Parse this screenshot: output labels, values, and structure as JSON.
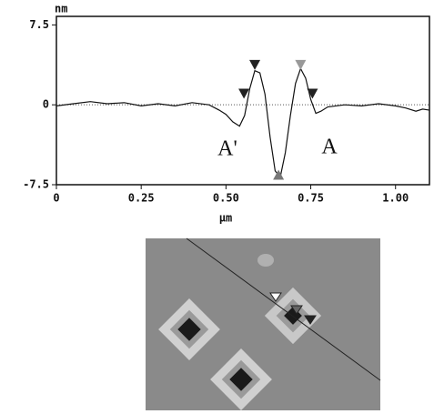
{
  "chart_data": {
    "type": "line",
    "y_unit": "nm",
    "x_unit": "μm",
    "x": [
      0,
      0.05,
      0.1,
      0.15,
      0.2,
      0.25,
      0.3,
      0.35,
      0.4,
      0.45,
      0.48,
      0.5,
      0.52,
      0.54,
      0.555,
      0.57,
      0.585,
      0.6,
      0.615,
      0.63,
      0.645,
      0.66,
      0.675,
      0.69,
      0.705,
      0.72,
      0.735,
      0.75,
      0.765,
      0.78,
      0.8,
      0.85,
      0.9,
      0.95,
      1.0,
      1.03,
      1.06,
      1.08,
      1.1
    ],
    "values": [
      -0.1,
      0.1,
      0.3,
      0.1,
      0.2,
      -0.1,
      0.1,
      -0.1,
      0.2,
      0.0,
      -0.5,
      -0.9,
      -1.6,
      -2.0,
      -1.0,
      1.5,
      3.2,
      3.0,
      1.0,
      -3.0,
      -6.2,
      -6.8,
      -4.5,
      -1.0,
      2.0,
      3.4,
      2.5,
      0.5,
      -0.8,
      -0.6,
      -0.2,
      0.0,
      -0.1,
      0.1,
      -0.1,
      -0.3,
      -0.6,
      -0.4,
      -0.5
    ],
    "color": "#111111",
    "xlim": [
      0,
      1.1
    ],
    "ylim": [
      -7.5,
      8.3
    ],
    "xticks": [
      0,
      0.25,
      {
        "value": 0.5,
        "label": "0.50"
      },
      0.75,
      {
        "value": 1.0,
        "label": "1.00"
      }
    ],
    "yticks": [
      -7.5,
      0,
      7.5
    ],
    "zero_line": true,
    "markers": [
      {
        "x": 0.553,
        "y": 1.0,
        "color": "#222222"
      },
      {
        "x": 0.585,
        "y": 3.7,
        "color": "#222222"
      },
      {
        "x": 0.72,
        "y": 3.7,
        "color": "#999999"
      },
      {
        "x": 0.755,
        "y": 1.0,
        "color": "#222222"
      },
      {
        "x": 0.655,
        "y": -6.6,
        "color": "#777777"
      }
    ],
    "annotations": [
      "A'",
      "A"
    ]
  }
}
